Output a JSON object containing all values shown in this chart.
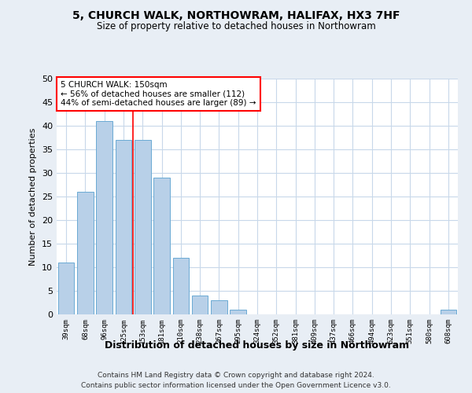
{
  "title1": "5, CHURCH WALK, NORTHOWRAM, HALIFAX, HX3 7HF",
  "title2": "Size of property relative to detached houses in Northowram",
  "xlabel": "Distribution of detached houses by size in Northowram",
  "ylabel": "Number of detached properties",
  "categories": [
    "39sqm",
    "68sqm",
    "96sqm",
    "125sqm",
    "153sqm",
    "181sqm",
    "210sqm",
    "238sqm",
    "267sqm",
    "295sqm",
    "324sqm",
    "352sqm",
    "381sqm",
    "409sqm",
    "437sqm",
    "466sqm",
    "494sqm",
    "523sqm",
    "551sqm",
    "580sqm",
    "608sqm"
  ],
  "values": [
    11,
    26,
    41,
    37,
    37,
    29,
    12,
    4,
    3,
    1,
    0,
    0,
    0,
    0,
    0,
    0,
    0,
    0,
    0,
    0,
    1
  ],
  "bar_color": "#b8d0e8",
  "bar_edge_color": "#6aaad4",
  "grid_color": "#c8d8ea",
  "annotation_text": "5 CHURCH WALK: 150sqm\n← 56% of detached houses are smaller (112)\n44% of semi-detached houses are larger (89) →",
  "annotation_box_color": "white",
  "annotation_box_edge_color": "red",
  "property_line_color": "red",
  "ylim": [
    0,
    50
  ],
  "yticks": [
    0,
    5,
    10,
    15,
    20,
    25,
    30,
    35,
    40,
    45,
    50
  ],
  "footnote1": "Contains HM Land Registry data © Crown copyright and database right 2024.",
  "footnote2": "Contains public sector information licensed under the Open Government Licence v3.0.",
  "bg_color": "#e8eef5",
  "plot_bg_color": "white"
}
